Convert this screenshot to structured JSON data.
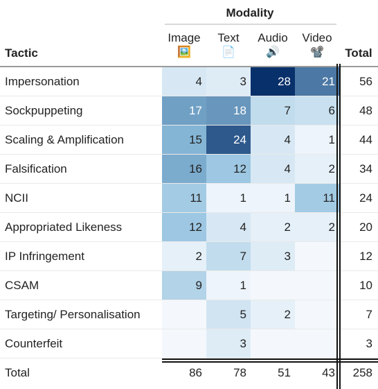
{
  "header": {
    "group_label": "Modality",
    "tactic_label": "Tactic",
    "total_label": "Total",
    "columns": [
      {
        "label": "Image",
        "icon": "🖼️"
      },
      {
        "label": "Text",
        "icon": "📄"
      },
      {
        "label": "Audio",
        "icon": "🔊"
      },
      {
        "label": "Video",
        "icon": "📽️"
      }
    ]
  },
  "rows": [
    {
      "tactic": "Impersonation",
      "values": [
        "4",
        "3",
        "28",
        "21"
      ],
      "total": "56"
    },
    {
      "tactic": "Sockpuppeting",
      "values": [
        "17",
        "18",
        "7",
        "6"
      ],
      "total": "48"
    },
    {
      "tactic": "Scaling & Amplification",
      "values": [
        "15",
        "24",
        "4",
        "1"
      ],
      "total": "44"
    },
    {
      "tactic": "Falsification",
      "values": [
        "16",
        "12",
        "4",
        "2"
      ],
      "total": "34"
    },
    {
      "tactic": "NCII",
      "values": [
        "11",
        "1",
        "1",
        "11"
      ],
      "total": "24"
    },
    {
      "tactic": "Appropriated Likeness",
      "values": [
        "12",
        "4",
        "2",
        "2"
      ],
      "total": "20"
    },
    {
      "tactic": "IP Infringement",
      "values": [
        "2",
        "7",
        "3",
        ""
      ],
      "total": "12"
    },
    {
      "tactic": "CSAM",
      "values": [
        "9",
        "1",
        "",
        ""
      ],
      "total": "10"
    },
    {
      "tactic": "Targeting/ Personalisation",
      "values": [
        "",
        "5",
        "2",
        ""
      ],
      "total": "7"
    },
    {
      "tactic": "Counterfeit",
      "values": [
        "",
        "3",
        "",
        ""
      ],
      "total": "3"
    }
  ],
  "totals": {
    "label": "Total",
    "values": [
      "86",
      "78",
      "51",
      "43"
    ],
    "grand": "258"
  },
  "colors": {
    "scale_low": "#f4f8fd",
    "scale_mid": "#8ebfdd",
    "scale_high": "#08306b"
  }
}
